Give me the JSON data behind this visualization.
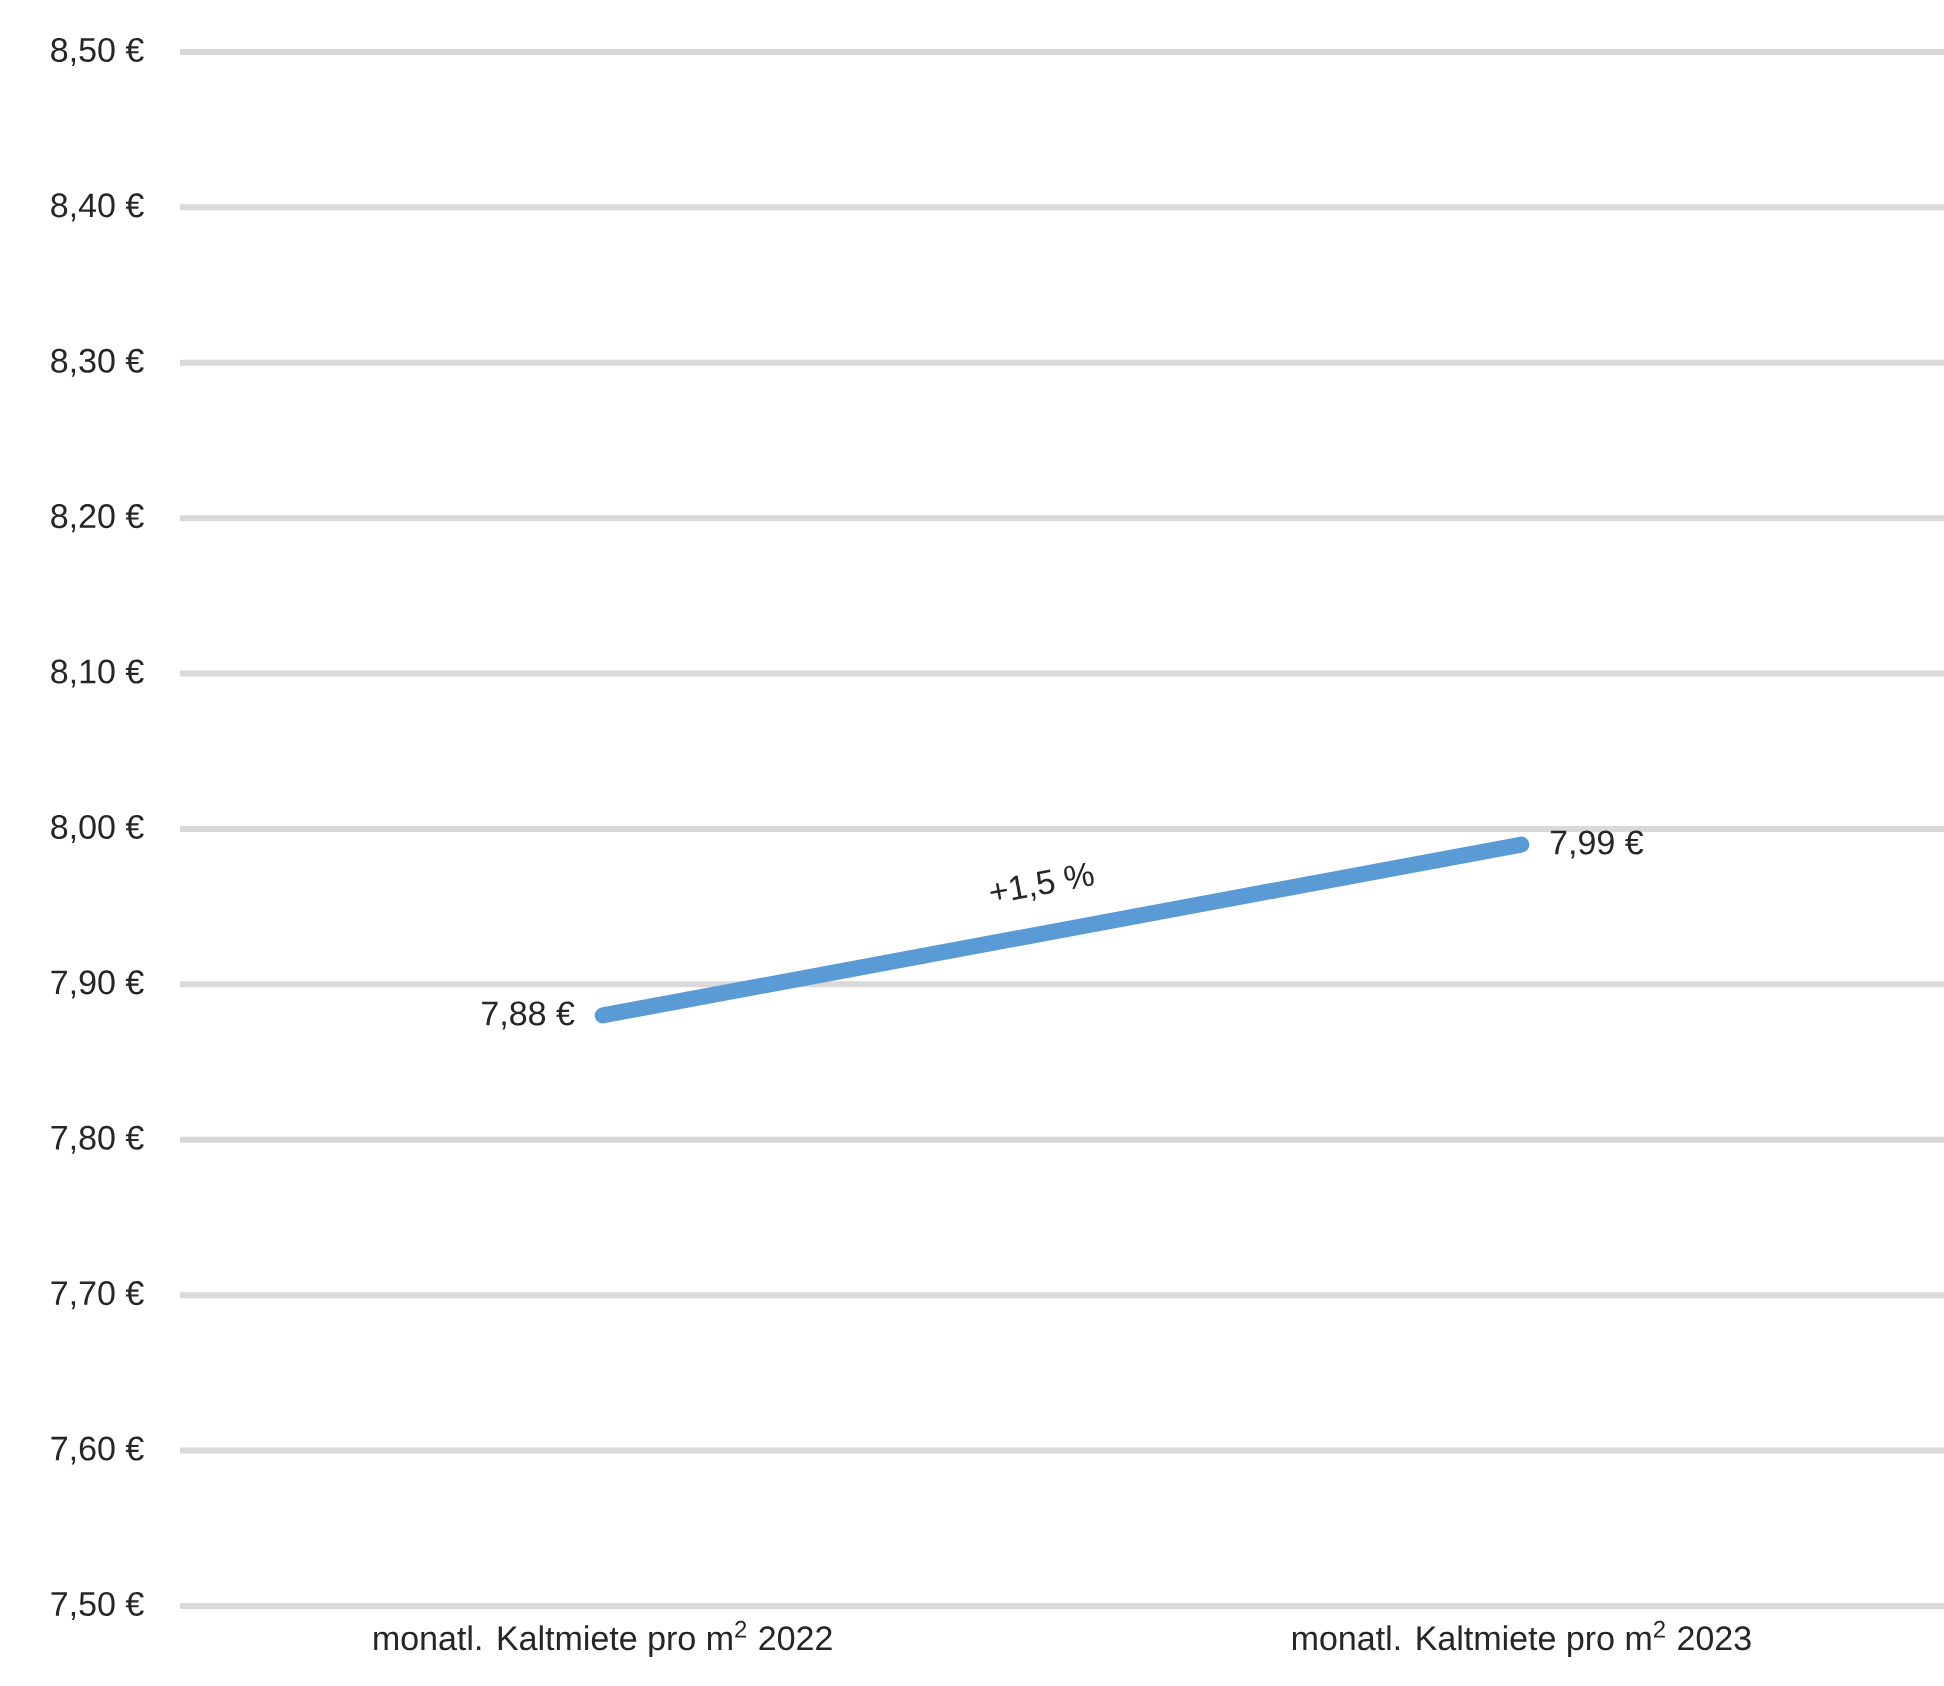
{
  "chart_data": {
    "type": "line",
    "categories": [
      "monatl. Kaltmiete pro m$^{2}$ 2022",
      "monatl. Kaltmiete pro m$^{2}$ 2023"
    ],
    "values": [
      7.88,
      7.99
    ],
    "value_labels": [
      "7,88 €",
      "7,99 €"
    ],
    "color": "#5b9bd5",
    "marker": "none",
    "line_style": "solid",
    "ylim": [
      7.5,
      8.5
    ],
    "yticks": [
      {
        "value": 7.5,
        "label": "7,50 €"
      },
      {
        "value": 7.6,
        "label": "7,60 €"
      },
      {
        "value": 7.7,
        "label": "7,70 €"
      },
      {
        "value": 7.8,
        "label": "7,80 €"
      },
      {
        "value": 7.9,
        "label": "7,90 €"
      },
      {
        "value": 8.0,
        "label": "8,00 €"
      },
      {
        "value": 8.1,
        "label": "8,10 €"
      },
      {
        "value": 8.2,
        "label": "8,20 €"
      },
      {
        "value": 8.3,
        "label": "8,30 €"
      },
      {
        "value": 8.4,
        "label": "8,40 €"
      },
      {
        "value": 8.5,
        "label": "8,50 €"
      }
    ],
    "grid": "y",
    "annotations": [
      "+1,5 %"
    ]
  }
}
